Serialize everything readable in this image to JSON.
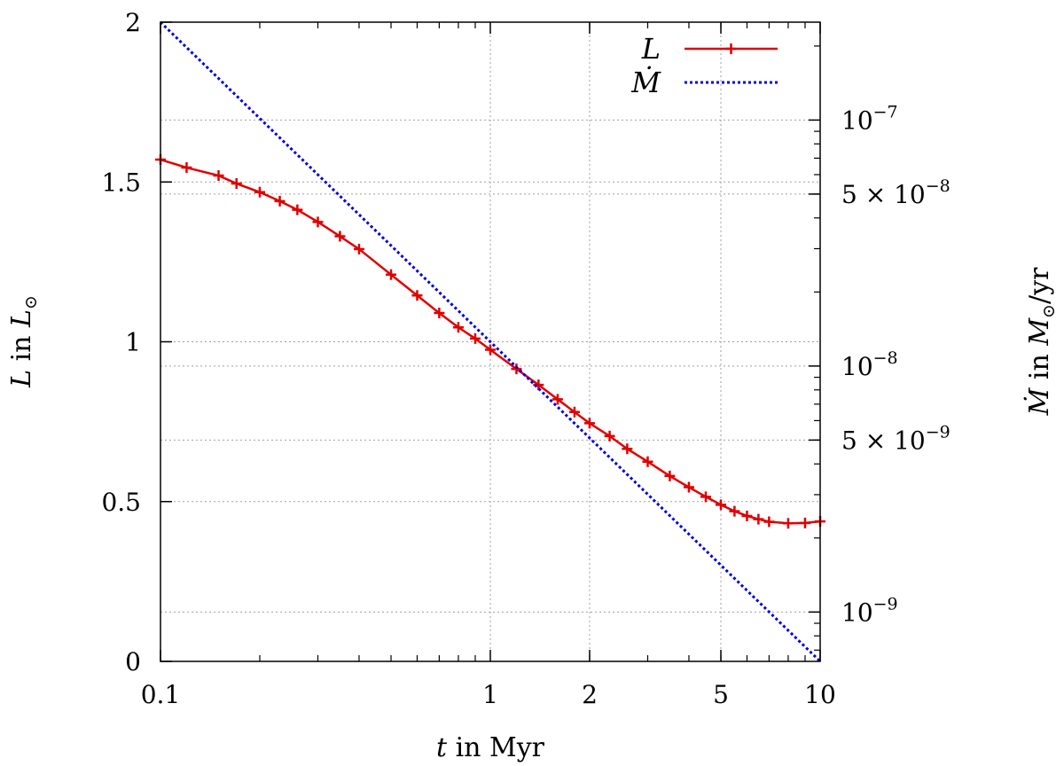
{
  "chart_data": {
    "type": "line",
    "xlabel": {
      "var": "t",
      "rest": " in Myr"
    },
    "ylabel_left": {
      "var": "L",
      "rest": " in ",
      "unit_var": "L",
      "unit_sub": "⊙"
    },
    "ylabel_right": {
      "var": "Ṁ",
      "rest": " in ",
      "unit_var": "M",
      "unit_sub": "⊙",
      "unit_tail": "/yr"
    },
    "x_scale": "log",
    "xlim": [
      0.1,
      10
    ],
    "x_ticks": [
      {
        "value": 0.1,
        "label": "0.1"
      },
      {
        "value": 1,
        "label": "1"
      },
      {
        "value": 2,
        "label": "2"
      },
      {
        "value": 5,
        "label": "5"
      },
      {
        "value": 10,
        "label": "10"
      }
    ],
    "y_left_scale": "linear",
    "ylim_left": [
      0,
      2
    ],
    "y_left_ticks": [
      {
        "value": 0,
        "label": "0"
      },
      {
        "value": 0.5,
        "label": "0.5"
      },
      {
        "value": 1,
        "label": "1"
      },
      {
        "value": 1.5,
        "label": "1.5"
      },
      {
        "value": 2,
        "label": "2"
      }
    ],
    "y_right_scale": "log",
    "ylim_right": [
      6.3e-10,
      2.5e-07
    ],
    "y_right_ticks": [
      {
        "value": 1e-07,
        "pre": "",
        "exp": "−7"
      },
      {
        "value": 5e-08,
        "pre": "5 × ",
        "exp": "−8"
      },
      {
        "value": 1e-08,
        "pre": "",
        "exp": "−8"
      },
      {
        "value": 5e-09,
        "pre": "5 × ",
        "exp": "−9"
      },
      {
        "value": 1e-09,
        "pre": "",
        "exp": "−9"
      }
    ],
    "grid": true,
    "legend_position": "top-right",
    "series": [
      {
        "name": "L",
        "axis": "left",
        "color": "#e00000",
        "style": "solid-with-plus-markers",
        "x": [
          0.1,
          0.12,
          0.15,
          0.17,
          0.2,
          0.23,
          0.26,
          0.3,
          0.35,
          0.4,
          0.5,
          0.6,
          0.7,
          0.8,
          0.9,
          1.0,
          1.2,
          1.4,
          1.6,
          1.8,
          2.0,
          2.3,
          2.6,
          3.0,
          3.5,
          4.0,
          4.5,
          5.0,
          5.5,
          6.0,
          6.5,
          7.0,
          8.0,
          9.0,
          10.0
        ],
        "y": [
          1.57,
          1.545,
          1.52,
          1.495,
          1.468,
          1.44,
          1.413,
          1.375,
          1.33,
          1.29,
          1.21,
          1.145,
          1.09,
          1.045,
          1.01,
          0.975,
          0.915,
          0.865,
          0.82,
          0.78,
          0.745,
          0.705,
          0.665,
          0.625,
          0.58,
          0.545,
          0.515,
          0.49,
          0.47,
          0.455,
          0.445,
          0.437,
          0.432,
          0.433,
          0.438
        ]
      },
      {
        "name": "Ṁ",
        "axis": "right",
        "color": "#0000dd",
        "style": "dotted",
        "x": [
          0.1,
          10
        ],
        "y": [
          2.5e-07,
          6.3e-10
        ]
      }
    ]
  },
  "colors": {
    "L": "#e00000",
    "Mdot": "#0000dd",
    "grid": "#a0a0a0",
    "axis": "#000000"
  }
}
